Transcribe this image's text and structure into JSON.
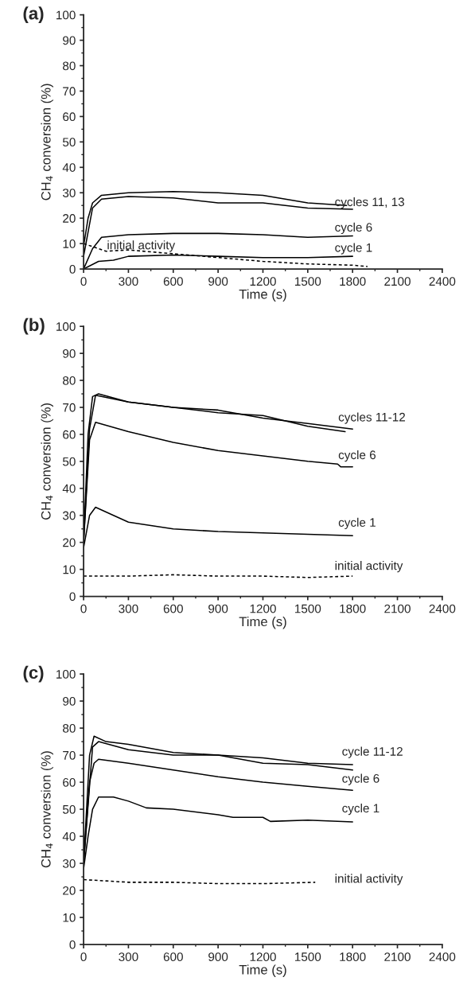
{
  "chart_data": [
    {
      "type": "line",
      "title": "(a)",
      "xlabel": "Time (s)",
      "ylabel": "CH$_{4}$ conversion (%)",
      "xlim": [
        0,
        2400
      ],
      "ylim": [
        0,
        100
      ],
      "xticks": [
        0,
        300,
        600,
        900,
        1200,
        1500,
        1800,
        2100,
        2400
      ],
      "yticks": [
        0,
        10,
        20,
        30,
        40,
        50,
        60,
        70,
        80,
        90,
        100
      ],
      "grid": false,
      "legend": false,
      "series": [
        {
          "color": "#000000",
          "line_style": "solid",
          "x": [
            0,
            30,
            60,
            120,
            300,
            600,
            900,
            1200,
            1500,
            1760
          ],
          "values": [
            9,
            20,
            26,
            29,
            30,
            30.5,
            30,
            29,
            26,
            25
          ]
        },
        {
          "color": "#000000",
          "line_style": "solid",
          "x": [
            0,
            60,
            120,
            300,
            600,
            900,
            1200,
            1500,
            1800
          ],
          "values": [
            5,
            24,
            27.5,
            28.5,
            28,
            26,
            26,
            24,
            23.5
          ]
        },
        {
          "color": "#000000",
          "line_style": "solid",
          "x": [
            0,
            60,
            120,
            300,
            600,
            900,
            1200,
            1500,
            1800
          ],
          "values": [
            0,
            8,
            12.5,
            13.5,
            14,
            14,
            13.5,
            12.5,
            13
          ]
        },
        {
          "color": "#000000",
          "line_style": "solid",
          "x": [
            0,
            100,
            200,
            300,
            600,
            900,
            1200,
            1500,
            1800
          ],
          "values": [
            0,
            3,
            3.5,
            5,
            5.5,
            5,
            4.5,
            4.5,
            5
          ]
        },
        {
          "color": "#000000",
          "line_style": "dashed",
          "x": [
            0,
            50,
            150,
            300,
            600,
            900,
            1200,
            1500,
            1800,
            1900
          ],
          "values": [
            10,
            9,
            7,
            7.5,
            6,
            4.5,
            3,
            2,
            1.5,
            1
          ]
        }
      ],
      "annotations": [
        "cycles 11, 13",
        "cycle 6",
        "cycle 1",
        "initial activity"
      ]
    },
    {
      "type": "line",
      "title": "(b)",
      "xlabel": "Time (s)",
      "ylabel": "CH$_{4}$ conversion (%)",
      "xlim": [
        0,
        2400
      ],
      "ylim": [
        0,
        100
      ],
      "xticks": [
        0,
        300,
        600,
        900,
        1200,
        1500,
        1800,
        2100,
        2400
      ],
      "yticks": [
        0,
        10,
        20,
        30,
        40,
        50,
        60,
        70,
        80,
        90,
        100
      ],
      "grid": false,
      "legend": false,
      "series": [
        {
          "color": "#000000",
          "line_style": "solid",
          "x": [
            0,
            30,
            60,
            100,
            300,
            600,
            900,
            1200,
            1500,
            1800
          ],
          "values": [
            20,
            60,
            74,
            75,
            72,
            70,
            69,
            66,
            64,
            62
          ]
        },
        {
          "color": "#000000",
          "line_style": "solid",
          "x": [
            0,
            40,
            80,
            300,
            600,
            900,
            1200,
            1500,
            1750
          ],
          "values": [
            20,
            62,
            74.5,
            72,
            70,
            68,
            67,
            63,
            61
          ]
        },
        {
          "color": "#000000",
          "line_style": "solid",
          "x": [
            0,
            40,
            80,
            300,
            600,
            900,
            1200,
            1500,
            1700,
            1720,
            1800
          ],
          "values": [
            20,
            58,
            64.5,
            61,
            57,
            54,
            52,
            50,
            49,
            48,
            48
          ]
        },
        {
          "color": "#000000",
          "line_style": "solid",
          "x": [
            0,
            40,
            80,
            200,
            300,
            600,
            900,
            1200,
            1500,
            1800
          ],
          "values": [
            18,
            30,
            33,
            30,
            27.5,
            25,
            24,
            23.5,
            23,
            22.5
          ]
        },
        {
          "color": "#000000",
          "line_style": "dashed",
          "x": [
            0,
            300,
            600,
            900,
            1200,
            1500,
            1800
          ],
          "values": [
            7.5,
            7.5,
            8,
            7.5,
            7.5,
            7,
            7.5
          ]
        }
      ],
      "annotations": [
        "cycles 11-12",
        "cycle 6",
        "cycle 1",
        "initial activity"
      ]
    },
    {
      "type": "line",
      "title": "(c)",
      "xlabel": "Time (s)",
      "ylabel": "CH$_{4}$ conversion (%)",
      "xlim": [
        0,
        2400
      ],
      "ylim": [
        0,
        100
      ],
      "xticks": [
        0,
        300,
        600,
        900,
        1200,
        1500,
        1800,
        2100,
        2400
      ],
      "yticks": [
        0,
        10,
        20,
        30,
        40,
        50,
        60,
        70,
        80,
        90,
        100
      ],
      "grid": false,
      "legend": false,
      "series": [
        {
          "color": "#000000",
          "line_style": "solid",
          "x": [
            0,
            40,
            70,
            150,
            300,
            600,
            900,
            1200,
            1500,
            1800
          ],
          "values": [
            30,
            70,
            77,
            75,
            74,
            71,
            70,
            69,
            67,
            66.5
          ]
        },
        {
          "color": "#000000",
          "line_style": "solid",
          "x": [
            0,
            60,
            100,
            300,
            600,
            900,
            1200,
            1500,
            1800
          ],
          "values": [
            30,
            73,
            75,
            72,
            70,
            70,
            67,
            66.5,
            64.5
          ]
        },
        {
          "color": "#000000",
          "line_style": "solid",
          "x": [
            0,
            40,
            70,
            100,
            300,
            600,
            900,
            1200,
            1500,
            1800
          ],
          "values": [
            30,
            60,
            67,
            68.5,
            67,
            64.5,
            62,
            60,
            58.5,
            57
          ]
        },
        {
          "color": "#000000",
          "line_style": "solid",
          "x": [
            0,
            30,
            60,
            100,
            200,
            300,
            420,
            600,
            900,
            1000,
            1200,
            1250,
            1500,
            1800
          ],
          "values": [
            28,
            40,
            50,
            54.5,
            54.5,
            53,
            50.5,
            50,
            48,
            47,
            47,
            45.5,
            46,
            45.3
          ]
        },
        {
          "color": "#000000",
          "line_style": "dashed",
          "x": [
            0,
            300,
            600,
            900,
            1200,
            1550
          ],
          "values": [
            24,
            23,
            23,
            22.5,
            22.5,
            23
          ]
        }
      ],
      "annotations": [
        "cycle 11-12",
        "cycle 6",
        "cycle 1",
        "initial activity"
      ]
    }
  ]
}
